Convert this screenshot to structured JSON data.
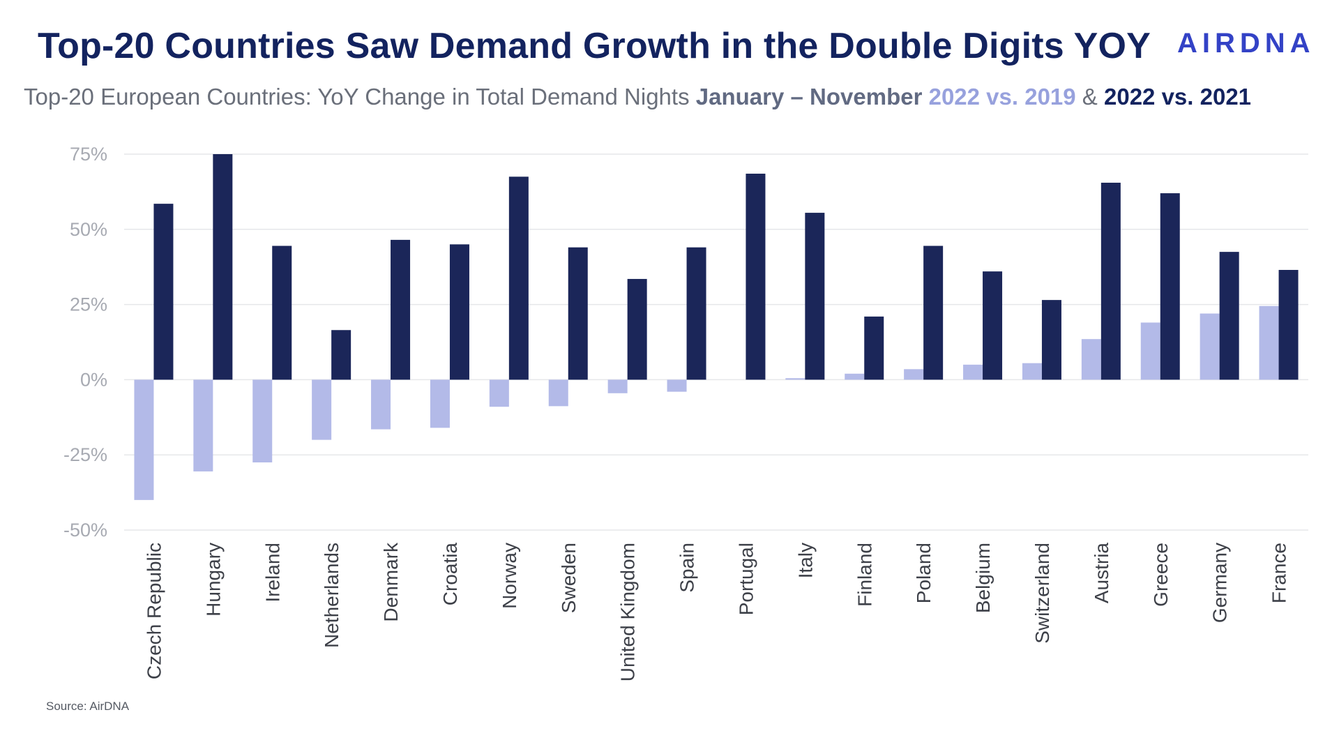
{
  "title": "Top-20 Countries Saw Demand Growth in the Double Digits YOY",
  "logo_text": "AIRDNA",
  "subtitle": {
    "prefix": "Top-20 European Countries: YoY Change in Total Demand Nights ",
    "range": "January – November",
    "series_2019": "2022 vs. 2019",
    "amp": " & ",
    "series_2021": "2022 vs. 2021"
  },
  "source": "Source: AirDNA",
  "colors": {
    "series_2019": "#b3bae8",
    "series_2021": "#1b2659",
    "grid": "#e6e7ea"
  },
  "chart_data": {
    "type": "bar",
    "categories": [
      "Czech Republic",
      "Hungary",
      "Ireland",
      "Netherlands",
      "Denmark",
      "Croatia",
      "Norway",
      "Sweden",
      "United Kingdom",
      "Spain",
      "Portugal",
      "Italy",
      "Finland",
      "Poland",
      "Belgium",
      "Switzerland",
      "Austria",
      "Greece",
      "Germany",
      "France"
    ],
    "series": [
      {
        "name": "2022 vs. 2019",
        "values": [
          -40,
          -30.5,
          -27.5,
          -20,
          -16.5,
          -16,
          -9,
          -8.8,
          -4.5,
          -4,
          0,
          0.5,
          2,
          3.5,
          5,
          5.5,
          13.5,
          19,
          22,
          24.5
        ]
      },
      {
        "name": "2022 vs. 2021",
        "values": [
          58.5,
          75,
          44.5,
          16.5,
          46.5,
          45,
          67.5,
          44,
          33.5,
          44,
          68.5,
          55.5,
          21,
          44.5,
          36,
          26.5,
          65.5,
          62,
          42.5,
          36.5
        ]
      }
    ],
    "yticks": [
      "75%",
      "50%",
      "25%",
      "0%",
      "-25%",
      "-50%"
    ],
    "ylim": [
      -50,
      75
    ],
    "grid": true,
    "legend": "in subtitle"
  }
}
